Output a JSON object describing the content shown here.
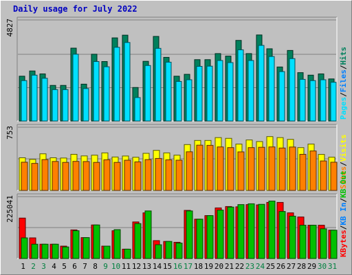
{
  "title": "Daily usage for July 2022",
  "colors": {
    "background": "#c0c0c0",
    "title": "#0000c0",
    "hits": "#00805c",
    "files": "#0080ff",
    "pages": "#00e0ff",
    "visits": "#ffff00",
    "sites": "#ff8000",
    "kb_in": "#0080ff",
    "kb_out": "#00c000",
    "kbytes": "#ff0000",
    "weekend_day_label": "#008040",
    "weekday_label": "#000000"
  },
  "chart_data": [
    {
      "type": "bar",
      "panel": "top",
      "ymax_label": "4827",
      "ymax": 4827,
      "right_labels": [
        {
          "text": "Pages",
          "color": "#00e0ff"
        },
        {
          "text": "/",
          "color": "#000000"
        },
        {
          "text": "Files",
          "color": "#0080ff"
        },
        {
          "text": "/",
          "color": "#000000"
        },
        {
          "text": "Hits",
          "color": "#00805c"
        }
      ],
      "categories": [
        "1",
        "2",
        "3",
        "4",
        "5",
        "6",
        "7",
        "8",
        "9",
        "10",
        "11",
        "12",
        "13",
        "14",
        "15",
        "16",
        "17",
        "18",
        "19",
        "20",
        "21",
        "22",
        "23",
        "24",
        "25",
        "26",
        "27",
        "28",
        "29",
        "30",
        "31"
      ],
      "series": [
        {
          "name": "Hits",
          "color": "#00805c",
          "values": [
            2140,
            2390,
            2250,
            1700,
            1700,
            3480,
            1760,
            3190,
            2840,
            3970,
            4100,
            1600,
            2850,
            4040,
            3040,
            2140,
            2230,
            2930,
            2930,
            3220,
            3100,
            3850,
            3220,
            4110,
            3450,
            2580,
            3370,
            2310,
            2190,
            2250,
            2010
          ]
        },
        {
          "name": "Files",
          "color": "#0080ff",
          "values": [
            1930,
            2190,
            2040,
            1500,
            1500,
            3190,
            1550,
            2840,
            2590,
            3520,
            3750,
            1120,
            2650,
            3470,
            2810,
            1890,
            1970,
            2610,
            2620,
            2890,
            2790,
            3400,
            2890,
            3610,
            3080,
            2360,
            2980,
            1990,
            1930,
            1970,
            1850
          ]
        },
        {
          "name": "Pages",
          "color": "#00e0ff",
          "values": [
            1930,
            2190,
            2040,
            1500,
            1500,
            3190,
            1550,
            2840,
            2590,
            3520,
            3750,
            1120,
            2650,
            3470,
            2810,
            1890,
            1970,
            2610,
            2620,
            2890,
            2790,
            3400,
            2890,
            3610,
            3080,
            2360,
            2980,
            1990,
            1930,
            1970,
            1850
          ]
        }
      ]
    },
    {
      "type": "bar",
      "panel": "middle",
      "ymax_label": "753",
      "ymax": 753,
      "right_labels": [
        {
          "text": "Sites",
          "color": "#ff8000"
        },
        {
          "text": "/",
          "color": "#000000"
        },
        {
          "text": "Visits",
          "color": "#ffff00"
        }
      ],
      "categories": [
        "1",
        "2",
        "3",
        "4",
        "5",
        "6",
        "7",
        "8",
        "9",
        "10",
        "11",
        "12",
        "13",
        "14",
        "15",
        "16",
        "17",
        "18",
        "19",
        "20",
        "21",
        "22",
        "23",
        "24",
        "25",
        "26",
        "27",
        "28",
        "29",
        "30",
        "31"
      ],
      "series": [
        {
          "name": "Visits",
          "color": "#ffff00",
          "values": [
            389,
            370,
            436,
            389,
            386,
            430,
            411,
            420,
            447,
            398,
            410,
            395,
            442,
            477,
            447,
            420,
            546,
            595,
            595,
            629,
            620,
            552,
            601,
            582,
            641,
            629,
            608,
            510,
            552,
            429,
            396
          ]
        },
        {
          "name": "Sites",
          "color": "#ff8000",
          "values": [
            336,
            322,
            367,
            345,
            334,
            346,
            344,
            334,
            365,
            334,
            360,
            340,
            367,
            381,
            364,
            360,
            460,
            539,
            537,
            518,
            510,
            459,
            510,
            514,
            518,
            505,
            517,
            430,
            470,
            351,
            336
          ]
        }
      ]
    },
    {
      "type": "bar",
      "panel": "bottom",
      "ymax_label": "225041",
      "ymax": 225041,
      "right_labels": [
        {
          "text": "KBytes",
          "color": "#ff0000"
        },
        {
          "text": "/",
          "color": "#000000"
        },
        {
          "text": "KB In",
          "color": "#0080ff"
        },
        {
          "text": "/",
          "color": "#000000"
        },
        {
          "text": "KB Out",
          "color": "#00c000"
        }
      ],
      "categories": [
        "1",
        "2",
        "3",
        "4",
        "5",
        "6",
        "7",
        "8",
        "9",
        "10",
        "11",
        "12",
        "13",
        "14",
        "15",
        "16",
        "17",
        "18",
        "19",
        "20",
        "21",
        "22",
        "23",
        "24",
        "25",
        "26",
        "27",
        "28",
        "29",
        "30",
        "31"
      ],
      "series": [
        {
          "name": "KBytes",
          "color": "#ff0000",
          "values": [
            147000,
            75000,
            52000,
            52000,
            45000,
            104000,
            76000,
            122000,
            45000,
            101000,
            34000,
            133000,
            166000,
            65000,
            62000,
            59000,
            175000,
            143000,
            156000,
            184000,
            189000,
            188000,
            196000,
            195000,
            204000,
            204000,
            166000,
            151000,
            121000,
            121000,
            103000
          ]
        },
        {
          "name": "KB In",
          "color": "#0080ff",
          "values": [
            0,
            0,
            0,
            0,
            0,
            0,
            0,
            0,
            0,
            0,
            0,
            0,
            0,
            0,
            0,
            0,
            0,
            0,
            0,
            0,
            0,
            0,
            0,
            0,
            0,
            0,
            0,
            0,
            0,
            0,
            0
          ]
        },
        {
          "name": "KB Out",
          "color": "#00c000",
          "values": [
            75000,
            52000,
            52000,
            52000,
            42000,
            101000,
            76000,
            122000,
            45000,
            105000,
            34000,
            127000,
            173000,
            50000,
            62000,
            56000,
            173000,
            143000,
            156000,
            176000,
            187000,
            196000,
            199000,
            197000,
            209000,
            171000,
            154000,
            121000,
            121000,
            108000,
            103000
          ]
        }
      ]
    }
  ],
  "x_axis": {
    "days": [
      "1",
      "2",
      "3",
      "4",
      "5",
      "6",
      "7",
      "8",
      "9",
      "10",
      "11",
      "12",
      "13",
      "14",
      "15",
      "16",
      "17",
      "18",
      "19",
      "20",
      "21",
      "22",
      "23",
      "24",
      "25",
      "26",
      "27",
      "28",
      "29",
      "30",
      "31"
    ],
    "weekend_days": [
      "2",
      "3",
      "9",
      "10",
      "16",
      "17",
      "23",
      "24",
      "30",
      "31"
    ]
  }
}
